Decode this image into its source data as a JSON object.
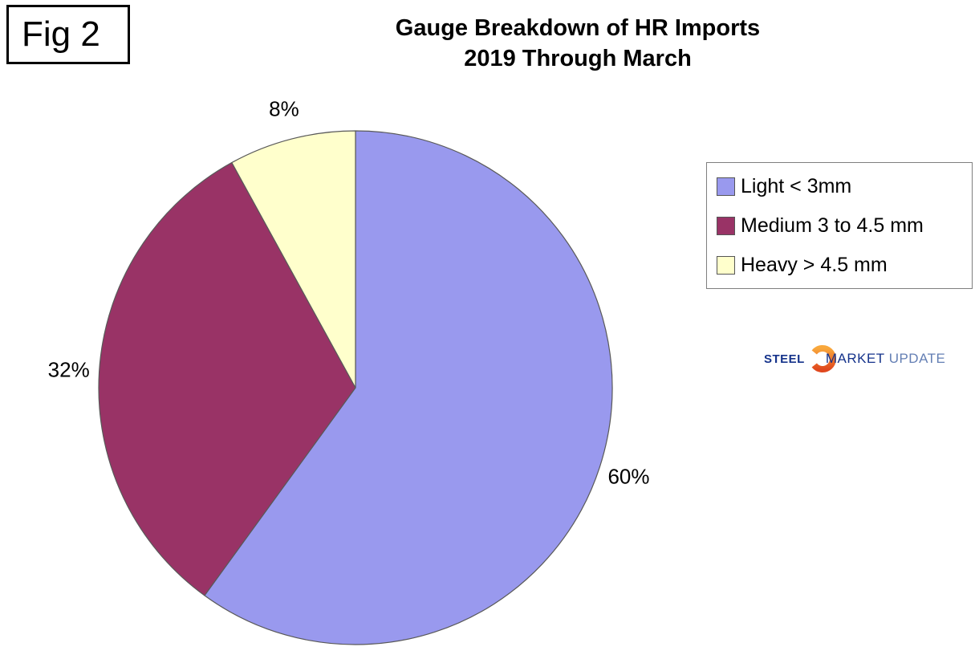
{
  "figure_label": "Fig 2",
  "title": {
    "line1": "Gauge Breakdown of HR Imports",
    "line2": "2019 Through March"
  },
  "chart_data": {
    "type": "pie",
    "title": "Gauge Breakdown of HR Imports 2019 Through March",
    "start_angle_deg": 0,
    "direction": "clockwise",
    "legend_position": "right",
    "border_color": "#595959",
    "slices": [
      {
        "label": "Light < 3mm",
        "value_pct": 60,
        "data_label": "60%",
        "color": "#9999EE"
      },
      {
        "label": "Medium 3 to 4.5 mm",
        "value_pct": 32,
        "data_label": "32%",
        "color": "#993366"
      },
      {
        "label": "Heavy > 4.5 mm",
        "value_pct": 8,
        "data_label": "8%",
        "color": "#FFFFCC"
      }
    ]
  },
  "logo": {
    "steel": "STEEL",
    "market": "MARKET",
    "update": "UPDATE",
    "colors": {
      "steel": "#15338B",
      "market": "#15338B",
      "update": "#647FB4",
      "crescent_top": "#F9A83C",
      "crescent_bottom": "#E0481E"
    }
  }
}
